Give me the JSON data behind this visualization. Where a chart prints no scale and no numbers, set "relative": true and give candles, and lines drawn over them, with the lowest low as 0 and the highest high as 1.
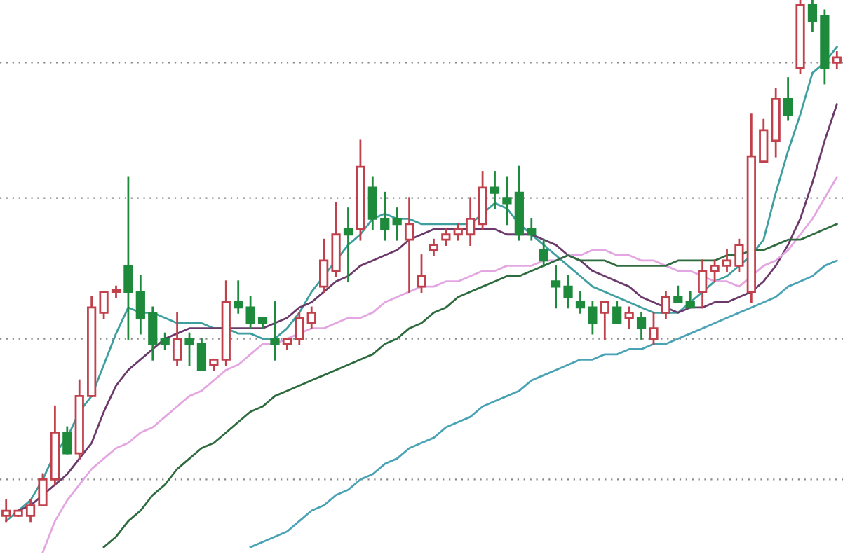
{
  "chart_data": {
    "type": "candlestick",
    "relative": true,
    "line_style": "solid",
    "ref_lines": [
      {
        "axis": "y",
        "value": 0.08,
        "color": "#888888",
        "line_style": "dotted"
      },
      {
        "axis": "y",
        "value": 0.35,
        "color": "#888888",
        "line_style": "dotted"
      },
      {
        "axis": "y",
        "value": 0.62,
        "color": "#888888",
        "line_style": "dotted"
      },
      {
        "axis": "y",
        "value": 0.88,
        "color": "#888888",
        "line_style": "dotted"
      }
    ],
    "categories": [
      null,
      null,
      null,
      null,
      null,
      null,
      null,
      null,
      null,
      null,
      null,
      null,
      null,
      null,
      null,
      null,
      null,
      null,
      null,
      null,
      null,
      null,
      null,
      null,
      null,
      null,
      null,
      null,
      null,
      null,
      null,
      null,
      null,
      null,
      null,
      null,
      null,
      null,
      null,
      null,
      null,
      null,
      null,
      null,
      null,
      null,
      null,
      null,
      null,
      null,
      null,
      null,
      null,
      null,
      null,
      null,
      null,
      null,
      null,
      null,
      null,
      null,
      null,
      null,
      null,
      null,
      null,
      null,
      null
    ],
    "ohlc": [
      [
        0.01,
        0.04,
        0,
        0.02
      ],
      [
        0.01,
        0.02,
        0.01,
        0.02
      ],
      [
        0.01,
        0.04,
        0,
        0.03
      ],
      [
        0.03,
        0.09,
        0.03,
        0.08
      ],
      [
        0.08,
        0.22,
        0.07,
        0.17
      ],
      [
        0.17,
        0.18,
        0.13,
        0.13
      ],
      [
        0.13,
        0.27,
        0.12,
        0.24
      ],
      [
        0.24,
        0.43,
        0.24,
        0.41
      ],
      [
        0.4,
        0.44,
        0.39,
        0.44
      ],
      [
        0.44,
        0.45,
        0.43,
        0.44
      ],
      [
        0.49,
        0.66,
        0.35,
        0.44
      ],
      [
        0.44,
        0.47,
        0.36,
        0.39
      ],
      [
        0.4,
        0.41,
        0.31,
        0.34
      ],
      [
        0.35,
        0.36,
        0.33,
        0.34
      ],
      [
        0.31,
        0.4,
        0.3,
        0.35
      ],
      [
        0.35,
        0.36,
        0.3,
        0.34
      ],
      [
        0.34,
        0.35,
        0.29,
        0.29
      ],
      [
        0.3,
        0.31,
        0.29,
        0.31
      ],
      [
        0.31,
        0.46,
        0.3,
        0.42
      ],
      [
        0.42,
        0.46,
        0.4,
        0.41
      ],
      [
        0.41,
        0.43,
        0.37,
        0.38
      ],
      [
        0.39,
        0.39,
        0.37,
        0.38
      ],
      [
        0.35,
        0.42,
        0.31,
        0.34
      ],
      [
        0.34,
        0.35,
        0.33,
        0.35
      ],
      [
        0.35,
        0.4,
        0.34,
        0.39
      ],
      [
        0.38,
        0.41,
        0.37,
        0.4
      ],
      [
        0.45,
        0.54,
        0.44,
        0.5
      ],
      [
        0.48,
        0.61,
        0.47,
        0.55
      ],
      [
        0.56,
        0.6,
        0.46,
        0.55
      ],
      [
        0.56,
        0.73,
        0.54,
        0.68
      ],
      [
        0.64,
        0.66,
        0.56,
        0.58
      ],
      [
        0.58,
        0.63,
        0.54,
        0.56
      ],
      [
        0.58,
        0.6,
        0.54,
        0.57
      ],
      [
        0.54,
        0.62,
        0.44,
        0.57
      ],
      [
        0.45,
        0.51,
        0.44,
        0.47
      ],
      [
        0.52,
        0.54,
        0.51,
        0.53
      ],
      [
        0.54,
        0.56,
        0.53,
        0.55
      ],
      [
        0.55,
        0.57,
        0.54,
        0.56
      ],
      [
        0.55,
        0.62,
        0.53,
        0.58
      ],
      [
        0.57,
        0.67,
        0.56,
        0.64
      ],
      [
        0.64,
        0.67,
        0.6,
        0.63
      ],
      [
        0.62,
        0.66,
        0.57,
        0.61
      ],
      [
        0.63,
        0.68,
        0.54,
        0.55
      ],
      [
        0.56,
        0.58,
        0.54,
        0.55
      ],
      [
        0.52,
        0.54,
        0.49,
        0.5
      ],
      [
        0.46,
        0.49,
        0.41,
        0.45
      ],
      [
        0.45,
        0.47,
        0.41,
        0.43
      ],
      [
        0.42,
        0.44,
        0.4,
        0.41
      ],
      [
        0.41,
        0.42,
        0.36,
        0.38
      ],
      [
        0.4,
        0.42,
        0.35,
        0.42
      ],
      [
        0.41,
        0.42,
        0.38,
        0.38
      ],
      [
        0.39,
        0.41,
        0.37,
        0.4
      ],
      [
        0.39,
        0.4,
        0.35,
        0.37
      ],
      [
        0.35,
        0.4,
        0.34,
        0.37
      ],
      [
        0.4,
        0.44,
        0.39,
        0.43
      ],
      [
        0.43,
        0.45,
        0.42,
        0.42
      ],
      [
        0.42,
        0.44,
        0.41,
        0.41
      ],
      [
        0.44,
        0.5,
        0.41,
        0.48
      ],
      [
        0.48,
        0.5,
        0.46,
        0.49
      ],
      [
        0.49,
        0.52,
        0.48,
        0.5
      ],
      [
        0.49,
        0.54,
        0.48,
        0.53
      ],
      [
        0.44,
        0.78,
        0.42,
        0.7
      ],
      [
        0.69,
        0.77,
        0.69,
        0.75
      ],
      [
        0.73,
        0.83,
        0.7,
        0.81
      ],
      [
        0.81,
        0.85,
        0.77,
        0.78
      ],
      [
        0.87,
        1,
        0.86,
        0.99
      ],
      [
        0.99,
        1,
        0.94,
        0.96
      ],
      [
        0.97,
        0.98,
        0.84,
        0.87
      ],
      [
        0.88,
        0.9,
        0.87,
        0.89
      ]
    ],
    "colors": [
      "#c0404c",
      "#c0404c",
      "#c0404c",
      "#c0404c",
      "#c0404c",
      "#1e8a3c",
      "#c0404c",
      "#c0404c",
      "#c0404c",
      "#c0404c",
      "#1e8a3c",
      "#1e8a3c",
      "#1e8a3c",
      "#1e8a3c",
      "#c0404c",
      "#1e8a3c",
      "#1e8a3c",
      "#c0404c",
      "#c0404c",
      "#1e8a3c",
      "#1e8a3c",
      "#1e8a3c",
      "#1e8a3c",
      "#c0404c",
      "#c0404c",
      "#c0404c",
      "#c0404c",
      "#c0404c",
      "#1e8a3c",
      "#c0404c",
      "#1e8a3c",
      "#1e8a3c",
      "#1e8a3c",
      "#c0404c",
      "#c0404c",
      "#c0404c",
      "#c0404c",
      "#c0404c",
      "#c0404c",
      "#c0404c",
      "#1e8a3c",
      "#1e8a3c",
      "#1e8a3c",
      "#1e8a3c",
      "#1e8a3c",
      "#1e8a3c",
      "#1e8a3c",
      "#1e8a3c",
      "#1e8a3c",
      "#c0404c",
      "#1e8a3c",
      "#c0404c",
      "#1e8a3c",
      "#c0404c",
      "#c0404c",
      "#1e8a3c",
      "#1e8a3c",
      "#c0404c",
      "#c0404c",
      "#c0404c",
      "#c0404c",
      "#c0404c",
      "#c0404c",
      "#c0404c",
      "#1e8a3c",
      "#c0404c",
      "#1e8a3c",
      "#1e8a3c",
      "#c0404c"
    ],
    "series": [
      {
        "type": "line",
        "color": "#3f9fa0",
        "values": [
          0,
          0.02,
          0.04,
          0.08,
          0.13,
          0.16,
          0.21,
          0.24,
          0.3,
          0.36,
          0.41,
          0.4,
          0.4,
          0.39,
          0.38,
          0.38,
          0.38,
          0.37,
          0.37,
          0.36,
          0.36,
          0.35,
          0.35,
          0.37,
          0.4,
          0.44,
          0.47,
          0.5,
          0.53,
          0.55,
          0.58,
          0.59,
          0.58,
          0.58,
          0.57,
          0.57,
          0.57,
          0.57,
          0.57,
          0.59,
          0.61,
          0.6,
          0.57,
          0.55,
          0.53,
          0.51,
          0.49,
          0.47,
          0.45,
          0.44,
          0.43,
          0.42,
          0.41,
          0.4,
          0.4,
          0.4,
          0.42,
          0.44,
          0.46,
          0.47,
          0.49,
          0.51,
          0.54,
          0.63,
          0.71,
          0.78,
          0.86,
          0.88,
          0.91
        ]
      },
      {
        "type": "line",
        "color": "#6b3a6b",
        "values": [
          null,
          0.02,
          0.03,
          0.05,
          0.07,
          0.09,
          0.12,
          0.15,
          0.21,
          0.26,
          0.29,
          0.31,
          0.33,
          0.35,
          0.36,
          0.37,
          0.37,
          0.37,
          0.37,
          0.37,
          0.37,
          0.37,
          0.38,
          0.39,
          0.41,
          0.42,
          0.44,
          0.46,
          0.47,
          0.49,
          0.5,
          0.51,
          0.52,
          0.54,
          0.55,
          0.56,
          0.56,
          0.56,
          0.56,
          0.56,
          0.56,
          0.55,
          0.55,
          0.55,
          0.54,
          0.53,
          0.51,
          0.5,
          0.48,
          0.47,
          0.46,
          0.45,
          0.43,
          0.42,
          0.41,
          0.4,
          0.41,
          0.41,
          0.42,
          0.42,
          0.43,
          0.44,
          0.46,
          0.49,
          0.53,
          0.58,
          0.65,
          0.73,
          0.8
        ]
      },
      {
        "type": "line",
        "color": "#e3a6e3",
        "values": [
          null,
          null,
          null,
          -0.06,
          0,
          0.04,
          0.07,
          0.1,
          0.12,
          0.14,
          0.15,
          0.17,
          0.18,
          0.2,
          0.22,
          0.24,
          0.25,
          0.27,
          0.29,
          0.3,
          0.32,
          0.34,
          0.34,
          0.35,
          0.36,
          0.37,
          0.37,
          0.38,
          0.39,
          0.39,
          0.4,
          0.42,
          0.43,
          0.44,
          0.45,
          0.45,
          0.46,
          0.46,
          0.47,
          0.48,
          0.48,
          0.49,
          0.49,
          0.49,
          0.5,
          0.5,
          0.51,
          0.51,
          0.52,
          0.52,
          0.51,
          0.51,
          0.5,
          0.5,
          0.49,
          0.48,
          0.48,
          0.47,
          0.46,
          0.46,
          0.45,
          0.47,
          0.49,
          0.5,
          0.52,
          0.55,
          0.58,
          0.62,
          0.66
        ]
      },
      {
        "type": "line",
        "color": "#2e6b3e",
        "values": [
          null,
          null,
          null,
          null,
          null,
          null,
          null,
          null,
          -0.05,
          -0.03,
          0,
          0.02,
          0.05,
          0.07,
          0.1,
          0.12,
          0.14,
          0.15,
          0.17,
          0.19,
          0.21,
          0.22,
          0.24,
          0.25,
          0.26,
          0.27,
          0.28,
          0.29,
          0.3,
          0.31,
          0.32,
          0.34,
          0.35,
          0.37,
          0.38,
          0.4,
          0.41,
          0.43,
          0.44,
          0.45,
          0.46,
          0.47,
          0.47,
          0.48,
          0.49,
          0.5,
          0.51,
          0.5,
          0.5,
          0.5,
          0.49,
          0.49,
          0.49,
          0.49,
          0.49,
          0.5,
          0.5,
          0.5,
          0.5,
          0.51,
          0.51,
          0.52,
          0.52,
          0.53,
          0.54,
          0.54,
          0.55,
          0.56,
          0.57
        ]
      },
      {
        "type": "line",
        "color": "#4aa3b5",
        "values": [
          null,
          null,
          null,
          null,
          null,
          null,
          null,
          null,
          null,
          null,
          null,
          null,
          null,
          null,
          null,
          null,
          null,
          null,
          null,
          null,
          -0.05,
          -0.04,
          -0.03,
          -0.02,
          0,
          0.02,
          0.03,
          0.05,
          0.06,
          0.08,
          0.09,
          0.11,
          0.12,
          0.14,
          0.15,
          0.16,
          0.18,
          0.19,
          0.2,
          0.22,
          0.23,
          0.24,
          0.25,
          0.27,
          0.28,
          0.29,
          0.3,
          0.31,
          0.31,
          0.32,
          0.32,
          0.33,
          0.33,
          0.34,
          0.34,
          0.35,
          0.36,
          0.37,
          0.38,
          0.39,
          0.4,
          0.41,
          0.42,
          0.43,
          0.45,
          0.46,
          0.47,
          0.49,
          0.5
        ]
      }
    ]
  }
}
